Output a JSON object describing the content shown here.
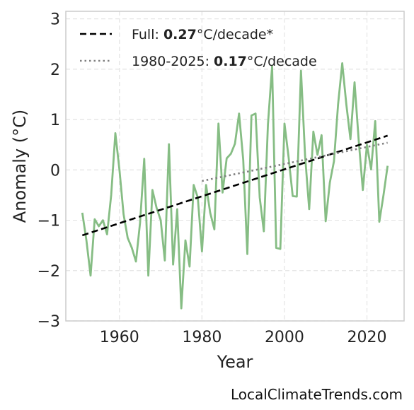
{
  "chart_data": {
    "type": "line",
    "xlabel": "Year",
    "ylabel": "Anomaly (°C)",
    "xlim": [
      1947,
      2029
    ],
    "ylim": [
      -3,
      3.15
    ],
    "x_ticks": [
      1960,
      1980,
      2000,
      2020
    ],
    "y_ticks": [
      -3,
      -2,
      -1,
      0,
      1,
      2,
      3
    ],
    "y_tick_labels": [
      "−3",
      "−2",
      "−1",
      "0",
      "1",
      "2",
      "3"
    ],
    "grid": true,
    "legend_position": "top-left",
    "series": [
      {
        "name": "",
        "color": "#86bd84",
        "x": [
          1951,
          1952,
          1953,
          1954,
          1955,
          1956,
          1957,
          1958,
          1959,
          1960,
          1961,
          1962,
          1963,
          1964,
          1965,
          1966,
          1967,
          1968,
          1969,
          1970,
          1971,
          1972,
          1973,
          1974,
          1975,
          1976,
          1977,
          1978,
          1979,
          1980,
          1981,
          1982,
          1983,
          1984,
          1985,
          1986,
          1987,
          1988,
          1989,
          1990,
          1991,
          1992,
          1993,
          1994,
          1995,
          1996,
          1997,
          1998,
          1999,
          2000,
          2001,
          2002,
          2003,
          2004,
          2005,
          2006,
          2007,
          2008,
          2009,
          2010,
          2011,
          2012,
          2013,
          2014,
          2015,
          2016,
          2017,
          2018,
          2019,
          2020,
          2021,
          2022,
          2023,
          2024,
          2025
        ],
        "values": [
          -0.85,
          -1.4,
          -2.1,
          -0.98,
          -1.12,
          -1.0,
          -1.28,
          -0.5,
          0.73,
          0.0,
          -0.88,
          -1.35,
          -1.55,
          -1.82,
          -1.05,
          0.22,
          -2.1,
          -0.4,
          -0.75,
          -1.0,
          -1.8,
          0.51,
          -1.88,
          -0.78,
          -2.75,
          -1.4,
          -1.92,
          -0.3,
          -0.55,
          -1.62,
          -0.3,
          -0.85,
          -1.18,
          0.92,
          -0.45,
          0.23,
          0.32,
          0.52,
          1.12,
          0.2,
          -1.67,
          1.08,
          1.12,
          -0.55,
          -1.22,
          0.9,
          2.06,
          -1.55,
          -1.57,
          0.92,
          0.25,
          -0.52,
          -0.53,
          1.97,
          0.28,
          -0.78,
          0.76,
          0.3,
          0.69,
          -1.02,
          -0.25,
          0.17,
          1.3,
          2.12,
          1.3,
          0.61,
          1.74,
          0.58,
          -0.4,
          0.5,
          0.01,
          0.97,
          -1.03,
          -0.5,
          0.08
        ]
      }
    ],
    "trends": [
      {
        "name_prefix": "Full: ",
        "rate": "0.27",
        "unit_suffix": "°C/decade*",
        "style": "dashed",
        "color": "#000000",
        "x": [
          1951,
          2025
        ],
        "y": [
          -1.3,
          0.68
        ]
      },
      {
        "name_prefix": "1980-2025: ",
        "rate": "0.17",
        "unit_suffix": "°C/decade",
        "style": "dotted",
        "color": "#808080",
        "x": [
          1980,
          2025
        ],
        "y": [
          -0.22,
          0.54
        ]
      }
    ]
  },
  "watermark": "LocalClimateTrends.com"
}
